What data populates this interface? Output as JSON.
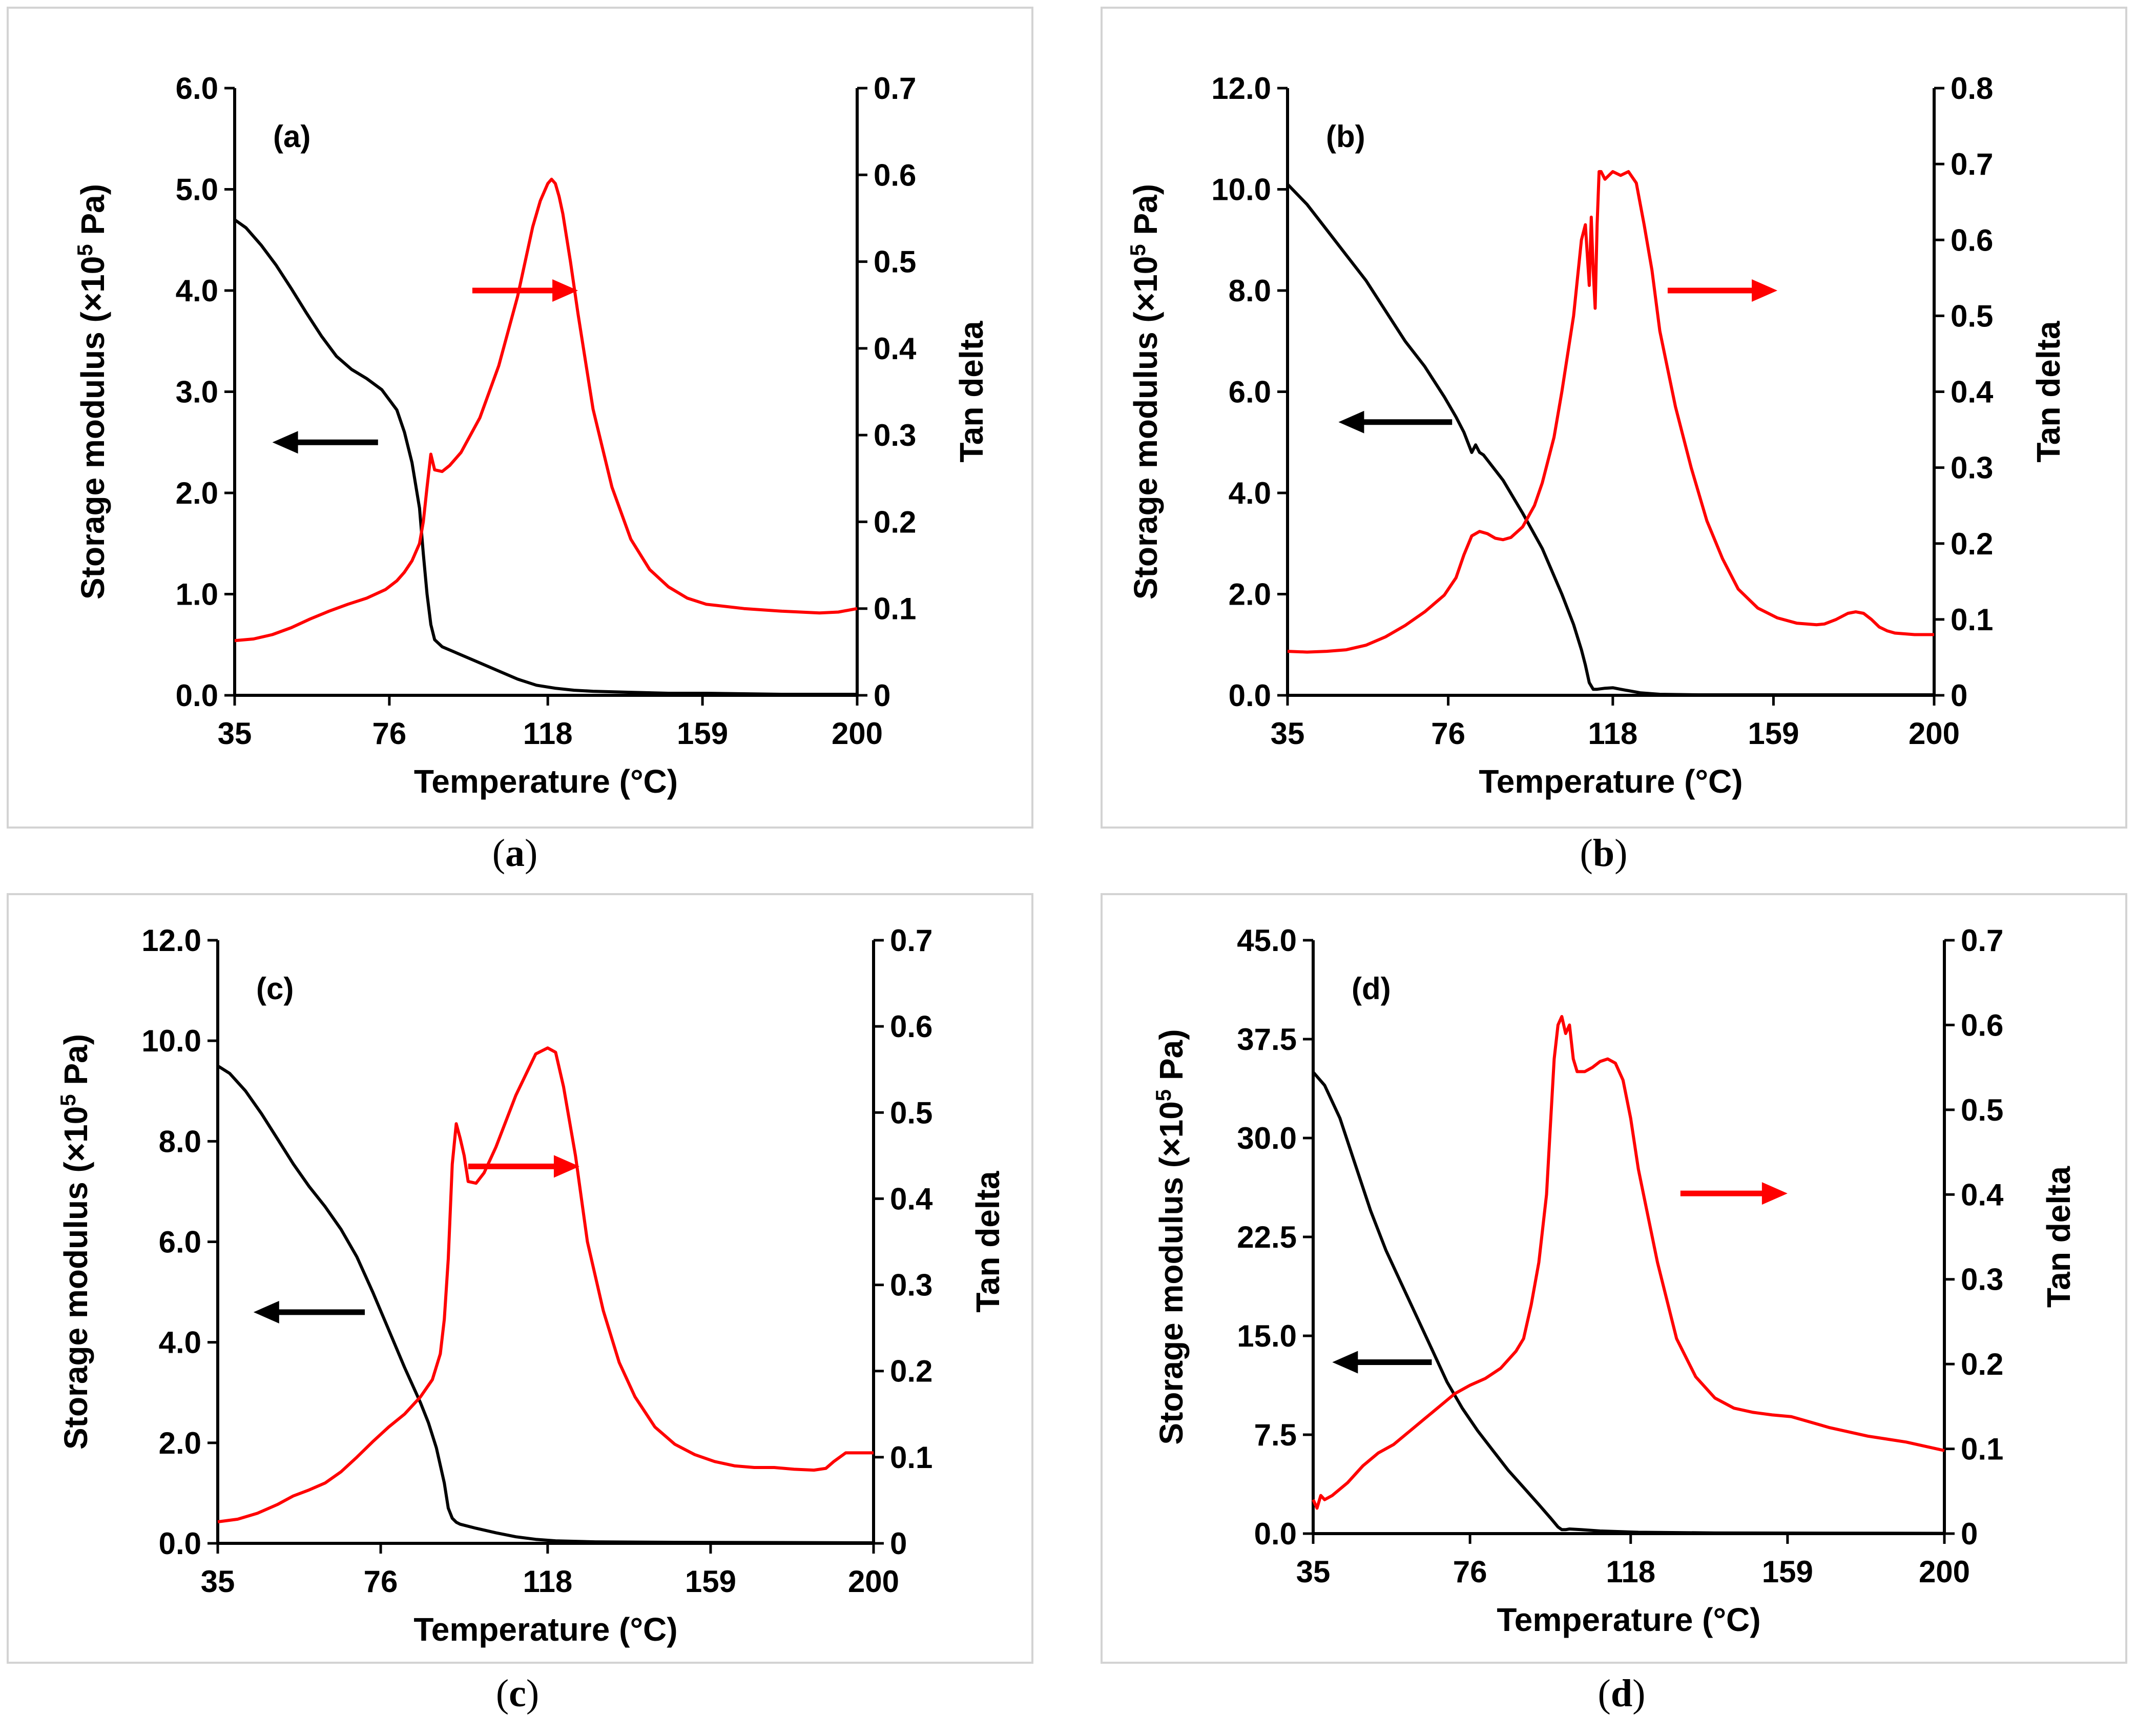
{
  "chart_data": [
    {
      "panel_label": "(a)",
      "caption": "a",
      "type": "line",
      "xlabel": "Temperature (°C)",
      "ylabel_prefix": "Storage modulus (×10",
      "ylabel_sup": "5",
      "ylabel_suffix": " Pa)",
      "y2label": "Tan delta",
      "xlim": [
        35,
        200
      ],
      "xticks": [
        35,
        76,
        118,
        159,
        200
      ],
      "ylim": [
        0,
        6
      ],
      "yticks": [
        "0.0",
        "1.0",
        "2.0",
        "3.0",
        "4.0",
        "5.0",
        "6.0"
      ],
      "y2lim": [
        0,
        0.7
      ],
      "y2ticks": [
        "0",
        "0.1",
        "0.2",
        "0.3",
        "0.4",
        "0.5",
        "0.6",
        "0.7"
      ],
      "arrow_left": {
        "x": [
          73,
          45
        ],
        "y": 2.5
      },
      "arrow_right": {
        "x": [
          98,
          126
        ],
        "y": 4.0
      },
      "series": [
        {
          "axis": "left",
          "color": "#000000",
          "x": [
            35,
            38,
            42,
            46,
            50,
            54,
            58,
            62,
            66,
            70,
            74,
            78,
            80,
            82,
            84,
            85,
            86,
            87,
            88,
            90,
            95,
            100,
            105,
            110,
            115,
            120,
            125,
            130,
            140,
            150,
            160,
            180,
            200
          ],
          "y": [
            4.7,
            4.62,
            4.45,
            4.25,
            4.02,
            3.78,
            3.55,
            3.35,
            3.22,
            3.13,
            3.02,
            2.82,
            2.6,
            2.3,
            1.85,
            1.4,
            1.0,
            0.7,
            0.55,
            0.48,
            0.4,
            0.32,
            0.24,
            0.16,
            0.1,
            0.07,
            0.05,
            0.04,
            0.03,
            0.02,
            0.02,
            0.01,
            0.01
          ]
        },
        {
          "axis": "right",
          "color": "#ff0000",
          "x": [
            35,
            40,
            45,
            50,
            55,
            60,
            65,
            70,
            75,
            78,
            80,
            82,
            84,
            85,
            86,
            87,
            88,
            90,
            92,
            95,
            100,
            105,
            110,
            114,
            116,
            118,
            119,
            120,
            121,
            122,
            124,
            126,
            130,
            135,
            140,
            145,
            150,
            155,
            160,
            170,
            180,
            190,
            195,
            200
          ],
          "y": [
            0.063,
            0.065,
            0.07,
            0.078,
            0.088,
            0.097,
            0.105,
            0.112,
            0.122,
            0.132,
            0.142,
            0.155,
            0.175,
            0.2,
            0.24,
            0.278,
            0.26,
            0.258,
            0.265,
            0.28,
            0.32,
            0.38,
            0.46,
            0.54,
            0.57,
            0.59,
            0.595,
            0.59,
            0.575,
            0.555,
            0.5,
            0.44,
            0.33,
            0.24,
            0.18,
            0.145,
            0.125,
            0.112,
            0.105,
            0.1,
            0.097,
            0.095,
            0.096,
            0.1
          ]
        }
      ]
    },
    {
      "panel_label": "(b)",
      "caption": "b",
      "type": "line",
      "xlabel": "Temperature (°C)",
      "ylabel_prefix": "Storage modulus (×10",
      "ylabel_sup": "5",
      "ylabel_suffix": " Pa)",
      "y2label": "Tan delta",
      "xlim": [
        35,
        200
      ],
      "xticks": [
        35,
        76,
        118,
        159,
        200
      ],
      "ylim": [
        0,
        12
      ],
      "yticks": [
        "0.0",
        "2.0",
        "4.0",
        "6.0",
        "8.0",
        "10.0",
        "12.0"
      ],
      "y2lim": [
        0,
        0.8
      ],
      "y2ticks": [
        "0",
        "0.1",
        "0.2",
        "0.3",
        "0.4",
        "0.5",
        "0.6",
        "0.7",
        "0.8"
      ],
      "arrow_left": {
        "x": [
          77,
          48
        ],
        "y": 5.4
      },
      "arrow_right": {
        "x": [
          132,
          160
        ],
        "y": 8.0
      },
      "series": [
        {
          "axis": "left",
          "color": "#000000",
          "x": [
            35,
            40,
            45,
            50,
            55,
            60,
            65,
            70,
            75,
            78,
            80,
            82,
            83,
            84,
            85,
            86,
            88,
            90,
            95,
            100,
            105,
            108,
            110,
            111,
            112,
            113,
            114,
            116,
            118,
            120,
            125,
            130,
            140,
            160,
            200
          ],
          "y": [
            10.1,
            9.7,
            9.2,
            8.7,
            8.2,
            7.6,
            7.0,
            6.5,
            5.9,
            5.5,
            5.2,
            4.8,
            4.95,
            4.8,
            4.75,
            4.65,
            4.45,
            4.25,
            3.6,
            2.9,
            2.0,
            1.4,
            0.9,
            0.6,
            0.25,
            0.12,
            0.12,
            0.14,
            0.15,
            0.12,
            0.05,
            0.02,
            0.01,
            0.01,
            0.01
          ]
        },
        {
          "axis": "right",
          "color": "#ff0000",
          "x": [
            35,
            40,
            45,
            50,
            55,
            60,
            65,
            70,
            75,
            78,
            80,
            82,
            84,
            86,
            88,
            90,
            92,
            95,
            98,
            100,
            103,
            105,
            108,
            110,
            111,
            112,
            112.5,
            113,
            113.5,
            114,
            114.5,
            115,
            116,
            118,
            120,
            122,
            124,
            126,
            128,
            130,
            134,
            138,
            142,
            146,
            150,
            155,
            160,
            165,
            170,
            172,
            175,
            178,
            180,
            182,
            184,
            186,
            188,
            190,
            195,
            200
          ],
          "y": [
            0.058,
            0.057,
            0.058,
            0.06,
            0.066,
            0.077,
            0.092,
            0.11,
            0.132,
            0.155,
            0.185,
            0.21,
            0.216,
            0.213,
            0.207,
            0.205,
            0.208,
            0.222,
            0.25,
            0.28,
            0.34,
            0.4,
            0.5,
            0.6,
            0.62,
            0.54,
            0.63,
            0.56,
            0.51,
            0.62,
            0.69,
            0.69,
            0.68,
            0.69,
            0.685,
            0.69,
            0.675,
            0.62,
            0.56,
            0.48,
            0.38,
            0.3,
            0.23,
            0.18,
            0.14,
            0.115,
            0.102,
            0.095,
            0.093,
            0.094,
            0.1,
            0.108,
            0.11,
            0.108,
            0.1,
            0.09,
            0.085,
            0.082,
            0.08,
            0.08
          ]
        }
      ]
    },
    {
      "panel_label": "(c)",
      "caption": "c",
      "type": "line",
      "xlabel": "Temperature (°C)",
      "ylabel_prefix": "Storage modulus (×10",
      "ylabel_sup": "5",
      "ylabel_suffix": " Pa)",
      "y2label": "Tan delta",
      "xlim": [
        35,
        200
      ],
      "xticks": [
        35,
        76,
        118,
        159,
        200
      ],
      "ylim": [
        0,
        12
      ],
      "yticks": [
        "0.0",
        "2.0",
        "4.0",
        "6.0",
        "8.0",
        "10.0",
        "12.0"
      ],
      "y2lim": [
        0,
        0.7
      ],
      "y2ticks": [
        "0",
        "0.1",
        "0.2",
        "0.3",
        "0.4",
        "0.5",
        "0.6",
        "0.7"
      ],
      "arrow_left": {
        "x": [
          72,
          44
        ],
        "y": 4.6
      },
      "arrow_right": {
        "x": [
          98,
          126
        ],
        "y": 7.5
      },
      "series": [
        {
          "axis": "left",
          "color": "#000000",
          "x": [
            35,
            38,
            42,
            46,
            50,
            54,
            58,
            62,
            66,
            70,
            74,
            78,
            82,
            86,
            88,
            90,
            92,
            93,
            94,
            95,
            96,
            100,
            105,
            110,
            115,
            120,
            130,
            150,
            200
          ],
          "y": [
            9.5,
            9.35,
            9.0,
            8.55,
            8.05,
            7.55,
            7.1,
            6.7,
            6.25,
            5.7,
            5.0,
            4.25,
            3.5,
            2.8,
            2.4,
            1.9,
            1.2,
            0.7,
            0.5,
            0.42,
            0.38,
            0.3,
            0.21,
            0.13,
            0.08,
            0.05,
            0.03,
            0.02,
            0.01
          ]
        },
        {
          "axis": "right",
          "color": "#ff0000",
          "x": [
            35,
            40,
            45,
            50,
            52,
            54,
            58,
            62,
            66,
            70,
            74,
            78,
            82,
            86,
            89,
            91,
            92,
            93,
            94,
            95,
            96,
            97,
            98,
            100,
            102,
            105,
            110,
            115,
            118,
            120,
            122,
            125,
            128,
            132,
            136,
            140,
            145,
            150,
            155,
            160,
            165,
            170,
            175,
            180,
            185,
            188,
            190,
            193,
            195,
            200
          ],
          "y": [
            0.025,
            0.028,
            0.035,
            0.045,
            0.05,
            0.055,
            0.062,
            0.07,
            0.083,
            0.1,
            0.118,
            0.135,
            0.15,
            0.17,
            0.19,
            0.22,
            0.26,
            0.33,
            0.44,
            0.487,
            0.47,
            0.45,
            0.42,
            0.418,
            0.43,
            0.46,
            0.52,
            0.568,
            0.575,
            0.57,
            0.53,
            0.45,
            0.35,
            0.27,
            0.21,
            0.17,
            0.135,
            0.115,
            0.103,
            0.095,
            0.09,
            0.088,
            0.088,
            0.086,
            0.085,
            0.087,
            0.095,
            0.105,
            0.105,
            0.105
          ]
        }
      ]
    },
    {
      "panel_label": "(d)",
      "caption": "d",
      "type": "line",
      "xlabel": "Temperature (°C)",
      "ylabel_prefix": "Storage modulus (×10",
      "ylabel_sup": "5",
      "ylabel_suffix": " Pa)",
      "y2label": "Tan delta",
      "xlim": [
        35,
        200
      ],
      "xticks": [
        35,
        76,
        118,
        159,
        200
      ],
      "ylim": [
        0,
        45
      ],
      "yticks": [
        "0.0",
        "7.5",
        "15.0",
        "22.5",
        "30.0",
        "37.5",
        "45.0"
      ],
      "y2lim": [
        0,
        0.7
      ],
      "y2ticks": [
        "0",
        "0.1",
        "0.2",
        "0.3",
        "0.4",
        "0.5",
        "0.6",
        "0.7"
      ],
      "arrow_left": {
        "x": [
          66,
          40
        ],
        "y": 13.0
      },
      "arrow_right": {
        "x": [
          131,
          159
        ],
        "y": 25.8
      },
      "series": [
        {
          "axis": "left",
          "color": "#000000",
          "x": [
            35,
            38,
            42,
            46,
            50,
            54,
            58,
            62,
            66,
            70,
            74,
            78,
            82,
            86,
            90,
            94,
            97,
            99,
            100,
            101,
            102,
            105,
            110,
            120,
            140,
            200
          ],
          "y": [
            35.0,
            34.0,
            31.5,
            28.0,
            24.5,
            21.5,
            19.0,
            16.5,
            14.0,
            11.5,
            9.5,
            7.8,
            6.3,
            4.8,
            3.5,
            2.2,
            1.2,
            0.5,
            0.3,
            0.3,
            0.35,
            0.3,
            0.2,
            0.1,
            0.05,
            0.02
          ]
        },
        {
          "axis": "right",
          "color": "#ff0000",
          "x": [
            35,
            36,
            37,
            38,
            40,
            44,
            48,
            52,
            56,
            60,
            64,
            68,
            72,
            76,
            80,
            84,
            88,
            90,
            92,
            94,
            96,
            97,
            98,
            99,
            100,
            101,
            102,
            103,
            104,
            106,
            108,
            110,
            112,
            114,
            116,
            118,
            120,
            125,
            130,
            135,
            140,
            145,
            150,
            155,
            160,
            170,
            180,
            190,
            200
          ],
          "y": [
            0.04,
            0.03,
            0.045,
            0.04,
            0.045,
            0.06,
            0.08,
            0.095,
            0.105,
            0.12,
            0.135,
            0.15,
            0.165,
            0.175,
            0.183,
            0.195,
            0.215,
            0.23,
            0.27,
            0.32,
            0.4,
            0.48,
            0.56,
            0.6,
            0.61,
            0.59,
            0.6,
            0.56,
            0.545,
            0.545,
            0.55,
            0.557,
            0.56,
            0.555,
            0.535,
            0.49,
            0.43,
            0.32,
            0.23,
            0.185,
            0.16,
            0.148,
            0.143,
            0.14,
            0.138,
            0.125,
            0.115,
            0.108,
            0.098
          ]
        }
      ]
    }
  ]
}
